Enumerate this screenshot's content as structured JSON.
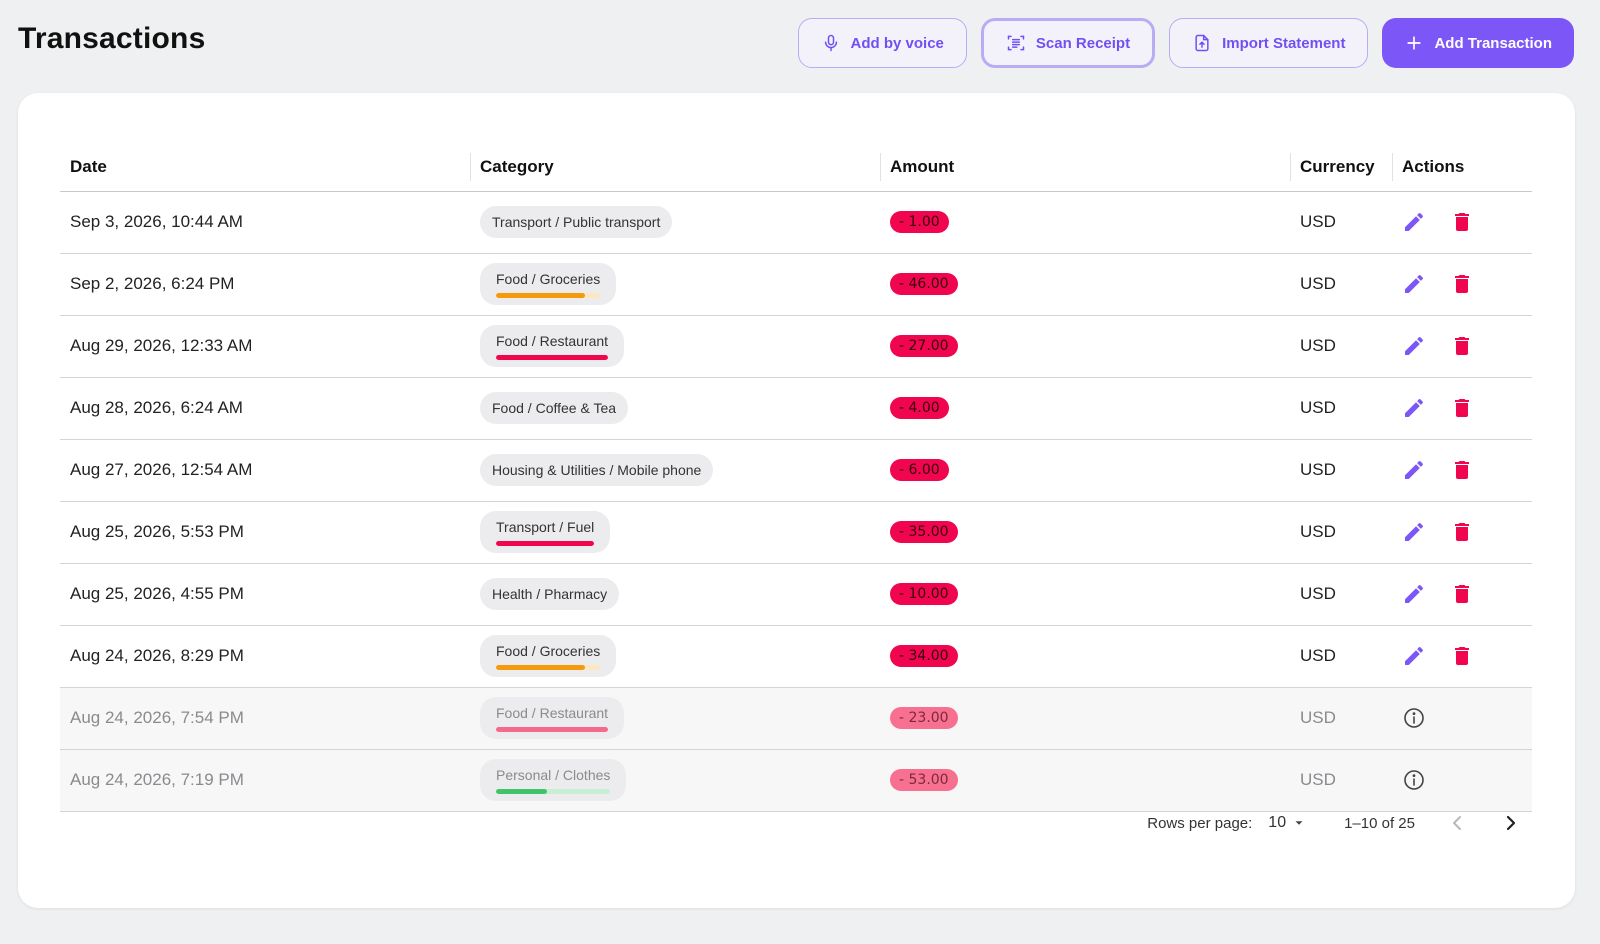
{
  "page": {
    "title": "Transactions"
  },
  "toolbar": {
    "voice_label": "Add by voice",
    "scan_label": "Scan Receipt",
    "import_label": "Import Statement",
    "add_label": "Add Transaction"
  },
  "table": {
    "columns": [
      "Date",
      "Category",
      "Amount",
      "Currency",
      "Actions"
    ],
    "rows": [
      {
        "date": "Sep 3, 2026, 10:44 AM",
        "category": "Transport / Public transport",
        "amount": "- 1.00",
        "currency": "USD",
        "disabled": false,
        "budget": null
      },
      {
        "date": "Sep 2, 2026, 6:24 PM",
        "category": "Food / Groceries",
        "amount": "- 46.00",
        "currency": "USD",
        "disabled": false,
        "budget": {
          "fraction": 0.85,
          "color": "#f59a0b",
          "track": "#fde6c0"
        }
      },
      {
        "date": "Aug 29, 2026, 12:33 AM",
        "category": "Food / Restaurant",
        "amount": "- 27.00",
        "currency": "USD",
        "disabled": false,
        "budget": {
          "fraction": 1.0,
          "color": "#f0064f",
          "track": "#fbc0d0"
        }
      },
      {
        "date": "Aug 28, 2026, 6:24 AM",
        "category": "Food / Coffee & Tea",
        "amount": "- 4.00",
        "currency": "USD",
        "disabled": false,
        "budget": null
      },
      {
        "date": "Aug 27, 2026, 12:54 AM",
        "category": "Housing & Utilities / Mobile phone",
        "amount": "- 6.00",
        "currency": "USD",
        "disabled": false,
        "budget": null
      },
      {
        "date": "Aug 25, 2026, 5:53 PM",
        "category": "Transport / Fuel",
        "amount": "- 35.00",
        "currency": "USD",
        "disabled": false,
        "budget": {
          "fraction": 1.0,
          "color": "#f0064f",
          "track": "#fbc0d0"
        }
      },
      {
        "date": "Aug 25, 2026, 4:55 PM",
        "category": "Health / Pharmacy",
        "amount": "- 10.00",
        "currency": "USD",
        "disabled": false,
        "budget": null
      },
      {
        "date": "Aug 24, 2026, 8:29 PM",
        "category": "Food / Groceries",
        "amount": "- 34.00",
        "currency": "USD",
        "disabled": false,
        "budget": {
          "fraction": 0.85,
          "color": "#f59a0b",
          "track": "#fde6c0"
        }
      },
      {
        "date": "Aug 24, 2026, 7:54 PM",
        "category": "Food / Restaurant",
        "amount": "- 23.00",
        "currency": "USD",
        "disabled": true,
        "budget": {
          "fraction": 1.0,
          "color": "#f56a8c",
          "track": "#fbc0d0"
        }
      },
      {
        "date": "Aug 24, 2026, 7:19 PM",
        "category": "Personal / Clothes",
        "amount": "- 53.00",
        "currency": "USD",
        "disabled": true,
        "budget": {
          "fraction": 0.45,
          "color": "#3fc46a",
          "track": "#c8efd4"
        }
      }
    ]
  },
  "pagination": {
    "rows_label": "Rows per page:",
    "rows_value": "10",
    "range": "1–10 of 25"
  },
  "colors": {
    "accent": "#7c56f6",
    "danger": "#f0064f"
  }
}
